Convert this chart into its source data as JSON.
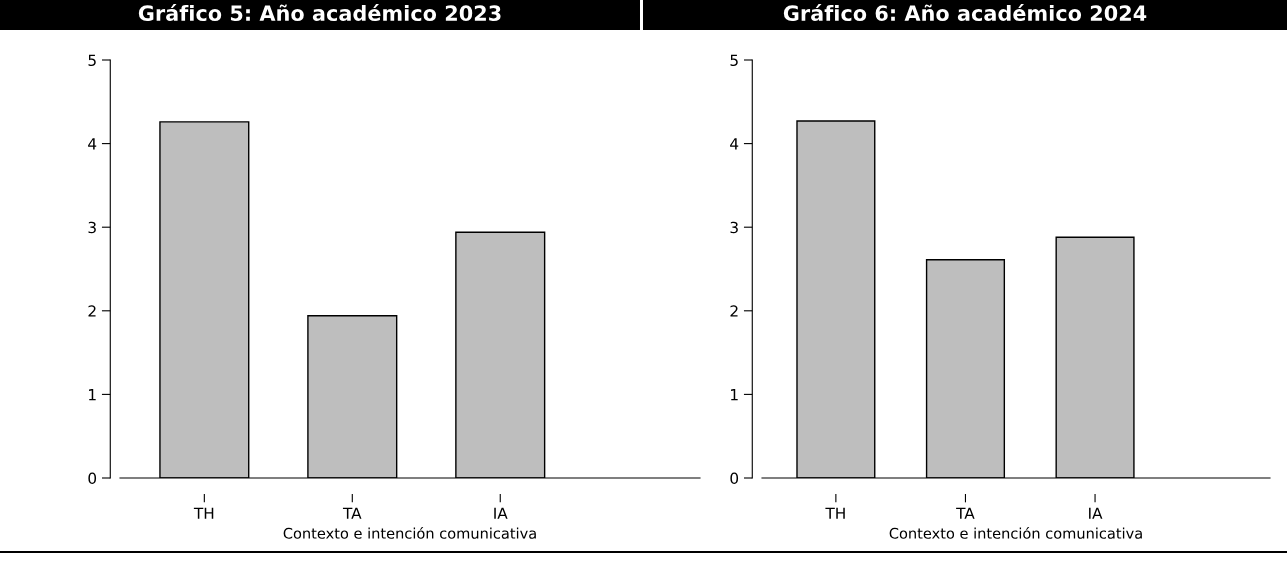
{
  "chart_data": [
    {
      "type": "bar",
      "title": "Gráfico 5: Año académico 2023",
      "xlabel": "Contexto e intención comunicativa",
      "categories": [
        "TH",
        "TA",
        "IA"
      ],
      "values": [
        4.26,
        1.94,
        2.94
      ],
      "color": "#bebebe",
      "ylim": [
        0,
        5
      ],
      "yticks": [
        0,
        1,
        2,
        3,
        4,
        5
      ],
      "grid": false,
      "legend": false
    },
    {
      "type": "bar",
      "title": "Gráfico 6: Año académico 2024",
      "xlabel": "Contexto e intención comunicativa",
      "categories": [
        "TH",
        "TA",
        "IA"
      ],
      "values": [
        4.27,
        2.61,
        2.88
      ],
      "color": "#bebebe",
      "ylim": [
        0,
        5
      ],
      "yticks": [
        0,
        1,
        2,
        3,
        4,
        5
      ],
      "grid": false,
      "legend": false
    }
  ]
}
